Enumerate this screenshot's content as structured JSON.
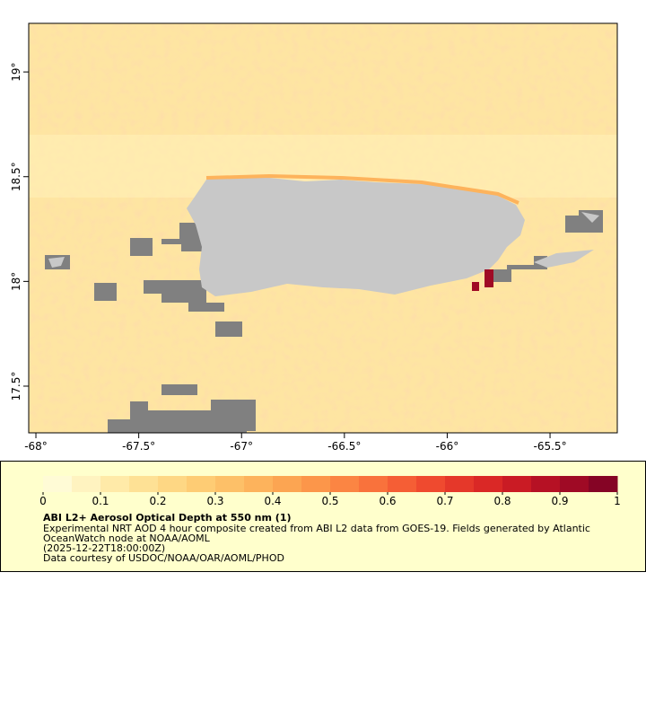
{
  "chart_data": {
    "type": "raster-map",
    "xlim": [
      -68.035,
      -65.173
    ],
    "ylim": [
      17.277,
      19.232
    ],
    "xticks": [
      {
        "value": -68,
        "label": "-68°"
      },
      {
        "value": -67.5,
        "label": "-67.5°"
      },
      {
        "value": -67,
        "label": "-67°"
      },
      {
        "value": -66.5,
        "label": "-66.5°"
      },
      {
        "value": -66,
        "label": "-66°"
      },
      {
        "value": -65.5,
        "label": "-65.5°"
      }
    ],
    "yticks": [
      {
        "value": 17.5,
        "label": "17.5°"
      },
      {
        "value": 18,
        "label": "18°"
      },
      {
        "value": 18.5,
        "label": "18.5°"
      },
      {
        "value": 19,
        "label": "19°"
      }
    ],
    "colorbar": {
      "lim": [
        0,
        1
      ],
      "ticks": [
        0,
        0.1,
        0.2,
        0.3,
        0.4,
        0.5,
        0.6,
        0.7,
        0.8,
        0.9,
        1
      ],
      "colors": [
        "#fffbd6",
        "#fff3c0",
        "#ffeaa8",
        "#fee195",
        "#fed784",
        "#fecc74",
        "#fdc068",
        "#fdb35c",
        "#fca552",
        "#fc964a",
        "#fb8543",
        "#f9723c",
        "#f55e35",
        "#ef4a2f",
        "#e5382a",
        "#da2826",
        "#ca1b24",
        "#b61124",
        "#9f0a25",
        "#850425"
      ]
    },
    "title": "ABI L2+ Aerosol Optical Depth at 550 nm (1)",
    "description": [
      "Experimental NRT AOD 4 hour composite created from ABI L2 data from GOES-19. Fields generated by Atlantic",
      "OceanWatch node at NOAA/AOML",
      "(2025-12-22T18:00:00Z)",
      "Data courtesy of USDOC/NOAA/OAR/AOML/PHOD"
    ]
  }
}
